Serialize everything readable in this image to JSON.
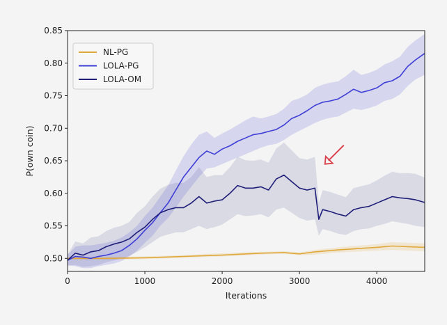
{
  "chart_data": {
    "type": "line",
    "title": "",
    "xlabel": "Iterations",
    "ylabel": "P(own coin)",
    "xlim": [
      0,
      4620
    ],
    "ylim": [
      0.48,
      0.85
    ],
    "xticks": [
      0,
      1000,
      2000,
      3000,
      4000
    ],
    "xtick_labels": [
      "0",
      "1000",
      "2000",
      "3000",
      "4000"
    ],
    "yticks": [
      0.5,
      0.55,
      0.6,
      0.65,
      0.7,
      0.75,
      0.8,
      0.85
    ],
    "ytick_labels": [
      "0.50",
      "0.55",
      "0.60",
      "0.65",
      "0.70",
      "0.75",
      "0.80",
      "0.85"
    ],
    "grid": false,
    "legend_position": "top-left",
    "annotation": {
      "type": "arrow",
      "color": "#d9404c",
      "points_to": [
        3330,
        0.645
      ]
    },
    "series": [
      {
        "name": "NL-PG",
        "color": "#e0a83a",
        "x": [
          0,
          500,
          1000,
          1500,
          2000,
          2500,
          2800,
          3000,
          3200,
          3500,
          4000,
          4200,
          4400,
          4620
        ],
        "y": [
          0.5,
          0.5,
          0.501,
          0.503,
          0.505,
          0.508,
          0.509,
          0.507,
          0.51,
          0.513,
          0.517,
          0.519,
          0.518,
          0.517
        ],
        "lower": [
          0.498,
          0.498,
          0.499,
          0.501,
          0.503,
          0.506,
          0.507,
          0.505,
          0.506,
          0.509,
          0.512,
          0.513,
          0.512,
          0.511
        ],
        "upper": [
          0.502,
          0.502,
          0.503,
          0.505,
          0.508,
          0.51,
          0.511,
          0.509,
          0.513,
          0.517,
          0.522,
          0.525,
          0.524,
          0.523
        ]
      },
      {
        "name": "LOLA-PG",
        "color": "#3f3fd6",
        "x": [
          0,
          100,
          200,
          300,
          400,
          500,
          600,
          700,
          800,
          900,
          1000,
          1100,
          1200,
          1300,
          1400,
          1500,
          1600,
          1700,
          1800,
          1900,
          2000,
          2100,
          2200,
          2300,
          2400,
          2500,
          2600,
          2700,
          2800,
          2900,
          3000,
          3100,
          3200,
          3300,
          3400,
          3500,
          3600,
          3700,
          3800,
          3900,
          4000,
          4100,
          4200,
          4300,
          4400,
          4500,
          4620
        ],
        "y": [
          0.497,
          0.503,
          0.502,
          0.5,
          0.503,
          0.505,
          0.508,
          0.512,
          0.52,
          0.53,
          0.543,
          0.555,
          0.57,
          0.585,
          0.605,
          0.625,
          0.64,
          0.655,
          0.665,
          0.66,
          0.668,
          0.673,
          0.68,
          0.685,
          0.69,
          0.692,
          0.695,
          0.698,
          0.705,
          0.715,
          0.72,
          0.727,
          0.735,
          0.74,
          0.742,
          0.745,
          0.752,
          0.76,
          0.755,
          0.758,
          0.762,
          0.77,
          0.773,
          0.78,
          0.795,
          0.805,
          0.815
        ],
        "lower": [
          0.49,
          0.488,
          0.485,
          0.485,
          0.488,
          0.49,
          0.492,
          0.496,
          0.503,
          0.512,
          0.524,
          0.535,
          0.55,
          0.562,
          0.578,
          0.595,
          0.61,
          0.625,
          0.638,
          0.64,
          0.645,
          0.65,
          0.655,
          0.66,
          0.665,
          0.67,
          0.674,
          0.676,
          0.682,
          0.69,
          0.696,
          0.702,
          0.708,
          0.713,
          0.716,
          0.718,
          0.724,
          0.73,
          0.728,
          0.731,
          0.735,
          0.742,
          0.745,
          0.752,
          0.765,
          0.775,
          0.782
        ],
        "upper": [
          0.505,
          0.518,
          0.52,
          0.52,
          0.522,
          0.524,
          0.527,
          0.532,
          0.54,
          0.55,
          0.565,
          0.578,
          0.595,
          0.612,
          0.635,
          0.657,
          0.675,
          0.69,
          0.695,
          0.685,
          0.692,
          0.698,
          0.705,
          0.712,
          0.718,
          0.715,
          0.718,
          0.722,
          0.73,
          0.742,
          0.746,
          0.752,
          0.762,
          0.767,
          0.77,
          0.772,
          0.78,
          0.79,
          0.782,
          0.785,
          0.79,
          0.798,
          0.803,
          0.81,
          0.825,
          0.835,
          0.845
        ]
      },
      {
        "name": "LOLA-OM",
        "color": "#1e1e78",
        "x": [
          0,
          100,
          200,
          300,
          400,
          500,
          600,
          700,
          800,
          900,
          1000,
          1100,
          1200,
          1300,
          1400,
          1500,
          1600,
          1700,
          1800,
          1900,
          2000,
          2100,
          2200,
          2300,
          2400,
          2500,
          2600,
          2700,
          2800,
          2900,
          3000,
          3100,
          3200,
          3250,
          3300,
          3400,
          3500,
          3600,
          3700,
          3800,
          3900,
          4000,
          4100,
          4200,
          4300,
          4400,
          4500,
          4620
        ],
        "y": [
          0.497,
          0.508,
          0.505,
          0.51,
          0.512,
          0.518,
          0.522,
          0.525,
          0.53,
          0.54,
          0.548,
          0.56,
          0.57,
          0.575,
          0.578,
          0.578,
          0.585,
          0.595,
          0.585,
          0.588,
          0.59,
          0.6,
          0.612,
          0.608,
          0.608,
          0.61,
          0.605,
          0.622,
          0.628,
          0.618,
          0.608,
          0.605,
          0.608,
          0.56,
          0.575,
          0.572,
          0.568,
          0.565,
          0.575,
          0.578,
          0.58,
          0.585,
          0.59,
          0.595,
          0.593,
          0.592,
          0.59,
          0.586
        ],
        "lower": [
          0.488,
          0.49,
          0.487,
          0.488,
          0.49,
          0.494,
          0.497,
          0.5,
          0.504,
          0.51,
          0.517,
          0.525,
          0.533,
          0.537,
          0.54,
          0.54,
          0.545,
          0.55,
          0.545,
          0.548,
          0.552,
          0.56,
          0.568,
          0.565,
          0.566,
          0.568,
          0.563,
          0.575,
          0.578,
          0.57,
          0.562,
          0.558,
          0.56,
          0.535,
          0.545,
          0.542,
          0.538,
          0.536,
          0.542,
          0.545,
          0.546,
          0.55,
          0.553,
          0.557,
          0.555,
          0.553,
          0.55,
          0.548
        ],
        "upper": [
          0.506,
          0.526,
          0.523,
          0.532,
          0.534,
          0.542,
          0.547,
          0.55,
          0.556,
          0.57,
          0.58,
          0.595,
          0.607,
          0.613,
          0.616,
          0.616,
          0.625,
          0.64,
          0.625,
          0.628,
          0.628,
          0.64,
          0.656,
          0.651,
          0.65,
          0.652,
          0.647,
          0.669,
          0.678,
          0.666,
          0.654,
          0.652,
          0.656,
          0.585,
          0.605,
          0.602,
          0.598,
          0.594,
          0.608,
          0.611,
          0.614,
          0.62,
          0.627,
          0.633,
          0.631,
          0.631,
          0.63,
          0.624
        ]
      }
    ]
  }
}
